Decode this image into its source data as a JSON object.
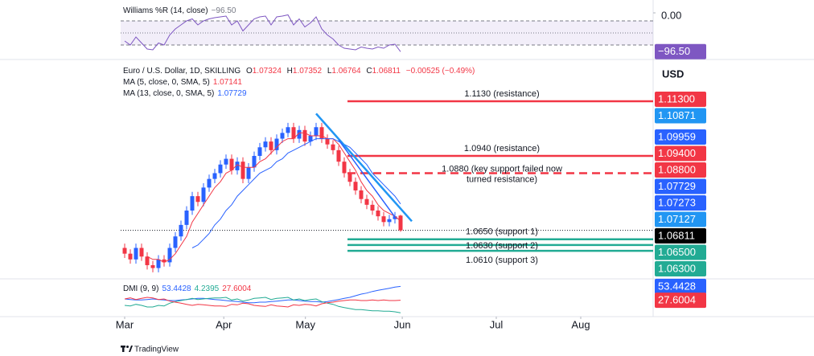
{
  "brand": "TradingView",
  "chart_data": [
    {
      "type": "line",
      "title": "Williams %R (14, close)",
      "color": "#7e57c2",
      "value_label": "−96.50",
      "ylim": [
        -100,
        0
      ],
      "yticks": [
        {
          "value": 0,
          "label": "0.00"
        }
      ],
      "levels": [
        -20,
        -50,
        -80
      ],
      "values": [
        -70,
        -80,
        -60,
        -75,
        -90,
        -92,
        -75,
        -80,
        -55,
        -40,
        -30,
        -20,
        -15,
        -30,
        -20,
        -15,
        -12,
        -10,
        -8,
        -30,
        -20,
        -45,
        -30,
        -15,
        -10,
        -8,
        -30,
        -10,
        -8,
        -5,
        -30,
        -15,
        -35,
        -25,
        -10,
        -40,
        -55,
        -65,
        -80,
        -88,
        -90,
        -92,
        -85,
        -88,
        -90,
        -85,
        -88,
        -80,
        -78,
        -96.5
      ]
    },
    {
      "type": "candlestick",
      "title": "Euro / U.S. Dollar, 1D, SKILLING",
      "currency": "USD",
      "ohlc_labels": [
        "O",
        "H",
        "L",
        "C"
      ],
      "change_label": "−0.00525 (−0.49%)",
      "up_color": "#2962ff",
      "down_color": "#f23645",
      "ylim": [
        1.0518,
        1.12
      ],
      "xticks": [
        {
          "value": 0,
          "label": "Mar"
        },
        {
          "value": 17.6,
          "label": "Apr"
        },
        {
          "value": 32.1,
          "label": "May"
        },
        {
          "value": 49.3,
          "label": "Jun"
        },
        {
          "value": 66,
          "label": "Jul"
        },
        {
          "value": 81,
          "label": "Aug"
        }
      ],
      "open": [
        1.062,
        1.06,
        1.058,
        1.062,
        1.059,
        1.056,
        1.055,
        1.058,
        1.057,
        1.062,
        1.066,
        1.07,
        1.075,
        1.08,
        1.078,
        1.083,
        1.086,
        1.088,
        1.091,
        1.093,
        1.089,
        1.092,
        1.086,
        1.09,
        1.094,
        1.097,
        1.099,
        1.096,
        1.1,
        1.102,
        1.104,
        1.1,
        1.103,
        1.099,
        1.101,
        1.104,
        1.1,
        1.098,
        1.096,
        1.092,
        1.088,
        1.085,
        1.082,
        1.079,
        1.077,
        1.075,
        1.073,
        1.071,
        1.072,
        1.07324
      ],
      "high": [
        1.0635,
        1.0615,
        1.0635,
        1.0635,
        1.0605,
        1.0575,
        1.0595,
        1.0595,
        1.0635,
        1.0675,
        1.0715,
        1.0765,
        1.0815,
        1.0815,
        1.0845,
        1.0875,
        1.0895,
        1.0925,
        1.0945,
        1.0945,
        1.0935,
        1.0935,
        1.0915,
        1.0955,
        1.0985,
        1.1005,
        1.1005,
        1.1015,
        1.1035,
        1.1055,
        1.1055,
        1.1045,
        1.1045,
        1.1025,
        1.1055,
        1.1055,
        1.1015,
        1.0995,
        1.0975,
        1.0935,
        1.0895,
        1.0865,
        1.0835,
        1.0805,
        1.0785,
        1.0765,
        1.0745,
        1.0735,
        1.0745,
        1.07352
      ],
      "low": [
        1.0585,
        1.0565,
        1.0565,
        1.0575,
        1.0545,
        1.0535,
        1.0535,
        1.0555,
        1.0555,
        1.0605,
        1.0645,
        1.0685,
        1.0735,
        1.0765,
        1.0765,
        1.0815,
        1.0845,
        1.0865,
        1.0895,
        1.0875,
        1.0875,
        1.0845,
        1.0845,
        1.0885,
        1.0925,
        1.0955,
        1.0945,
        1.0945,
        1.0985,
        1.1005,
        1.0985,
        1.0985,
        1.0975,
        1.0975,
        1.0995,
        1.0985,
        1.0965,
        1.0945,
        1.0905,
        1.0865,
        1.0835,
        1.0805,
        1.0775,
        1.0755,
        1.0735,
        1.0715,
        1.0695,
        1.0695,
        1.0705,
        1.06764
      ],
      "close": [
        1.06,
        1.058,
        1.062,
        1.059,
        1.056,
        1.055,
        1.058,
        1.057,
        1.062,
        1.066,
        1.07,
        1.075,
        1.08,
        1.078,
        1.083,
        1.086,
        1.088,
        1.091,
        1.093,
        1.089,
        1.092,
        1.086,
        1.09,
        1.094,
        1.097,
        1.099,
        1.096,
        1.1,
        1.102,
        1.104,
        1.1,
        1.103,
        1.099,
        1.101,
        1.104,
        1.1,
        1.098,
        1.096,
        1.092,
        1.088,
        1.085,
        1.082,
        1.079,
        1.077,
        1.075,
        1.073,
        1.071,
        1.072,
        1.073,
        1.06811
      ],
      "series": [
        {
          "name": "MA (5, close, 0, SMA, 5)",
          "color": "#f23645",
          "values": [
            null,
            null,
            null,
            null,
            1.059,
            1.058,
            1.058,
            1.057,
            1.058,
            1.06,
            1.063,
            1.066,
            1.071,
            1.074,
            1.077,
            1.08,
            1.083,
            1.085,
            1.088,
            1.089,
            1.091,
            1.09,
            1.09,
            1.09,
            1.092,
            1.093,
            1.095,
            1.097,
            1.099,
            1.1,
            1.1,
            1.102,
            1.102,
            1.101,
            1.101,
            1.101,
            1.1,
            1.1,
            1.098,
            1.095,
            1.092,
            1.089,
            1.085,
            1.082,
            1.08,
            1.077,
            1.075,
            1.074,
            1.073,
            1.07141
          ]
        },
        {
          "name": "MA (13, close, 0, SMA, 5)",
          "color": "#2962ff",
          "values": [
            null,
            null,
            null,
            null,
            null,
            null,
            null,
            null,
            null,
            null,
            null,
            null,
            1.062,
            1.063,
            1.065,
            1.067,
            1.07,
            1.072,
            1.075,
            1.077,
            1.08,
            1.082,
            1.084,
            1.086,
            1.088,
            1.089,
            1.09,
            1.092,
            1.093,
            1.095,
            1.096,
            1.097,
            1.098,
            1.099,
            1.1,
            1.1,
            1.1,
            1.1,
            1.099,
            1.098,
            1.097,
            1.095,
            1.093,
            1.091,
            1.088,
            1.086,
            1.084,
            1.082,
            1.08,
            1.07729
          ]
        }
      ],
      "levels": [
        {
          "value": 1.113,
          "text": [
            "1.1130 (resistance)"
          ],
          "color": "#f23645",
          "dashed": false
        },
        {
          "value": 1.094,
          "text": [
            "1.0940 (resistance)"
          ],
          "color": "#f23645",
          "dashed": false
        },
        {
          "value": 1.088,
          "text": [
            "1.0880 (key support failed now",
            "turned resistance)"
          ],
          "color": "#f23645",
          "dashed": true
        },
        {
          "value": 1.065,
          "text": [
            "1.0650 (support 1)"
          ],
          "color": "#22ab94",
          "dashed": false
        },
        {
          "value": 1.063,
          "text": [
            "1.0630 (support 2)"
          ],
          "color": "#22ab94",
          "dashed": false
        },
        {
          "value": 1.061,
          "text": [
            "1.0610 (support 3)"
          ],
          "color": "#22ab94",
          "dashed": false
        }
      ],
      "trendlines": [
        {
          "x": [
            34,
            51
          ],
          "y": [
            1.10871,
            1.07127
          ],
          "color": "#2196f3"
        },
        {
          "x": [
            38,
            48
          ],
          "y": [
            1.09959,
            1.07273
          ],
          "color": "#2962ff"
        }
      ],
      "price_labels": [
        {
          "value": 1.113,
          "label": "1.11300",
          "color": "#f23645"
        },
        {
          "value": 1.10871,
          "label": "1.10871",
          "color": "#2196f3"
        },
        {
          "value": 1.09959,
          "label": "1.09959",
          "color": "#2962ff"
        },
        {
          "value": 1.094,
          "label": "1.09400",
          "color": "#f23645"
        },
        {
          "value": 1.088,
          "label": "1.08800",
          "color": "#f23645"
        },
        {
          "value": 1.07273,
          "label": "1.07273",
          "color": "#2962ff"
        },
        {
          "value": 1.07127,
          "label": "1.07127",
          "color": "#2196f3"
        },
        {
          "value": 1.065,
          "label": "1.06500",
          "color": "#22ab94"
        },
        {
          "value": 1.063,
          "label": "1.06300",
          "color": "#22ab94"
        }
      ]
    },
    {
      "type": "line",
      "title": "DMI (9, 9)",
      "ylim": [
        0,
        60
      ],
      "series": [
        {
          "color": "#2962ff",
          "price_label": true,
          "values": [
            30,
            29,
            28,
            28,
            29,
            30,
            29,
            28,
            27,
            27,
            28,
            29,
            30,
            31,
            31,
            30,
            29,
            28,
            27,
            26,
            25,
            24,
            23,
            23,
            24,
            24,
            25,
            26,
            27,
            28,
            28,
            27,
            26,
            25,
            25,
            24,
            25,
            27,
            29,
            31,
            33,
            36,
            39,
            41,
            44,
            46,
            48,
            50,
            52,
            53.4428
          ]
        },
        {
          "color": "#22ab94",
          "price_label": false,
          "values": [
            18,
            17,
            20,
            18,
            15,
            15,
            18,
            17,
            22,
            25,
            27,
            29,
            31,
            29,
            30,
            31,
            32,
            32,
            33,
            28,
            30,
            26,
            28,
            31,
            32,
            33,
            29,
            31,
            32,
            33,
            28,
            30,
            27,
            29,
            30,
            25,
            22,
            20,
            16,
            14,
            12,
            10,
            10,
            9,
            8,
            8,
            7,
            7,
            6,
            4.2395
          ]
        },
        {
          "color": "#f23645",
          "price_label": true,
          "values": [
            30,
            32,
            29,
            31,
            33,
            32,
            29,
            30,
            26,
            24,
            22,
            20,
            18,
            20,
            19,
            18,
            17,
            17,
            16,
            20,
            19,
            22,
            21,
            18,
            17,
            16,
            19,
            17,
            16,
            15,
            19,
            18,
            20,
            19,
            17,
            21,
            23,
            24,
            26,
            27,
            28,
            28,
            27,
            27,
            28,
            27,
            28,
            27,
            27,
            27.6004
          ]
        }
      ]
    }
  ]
}
